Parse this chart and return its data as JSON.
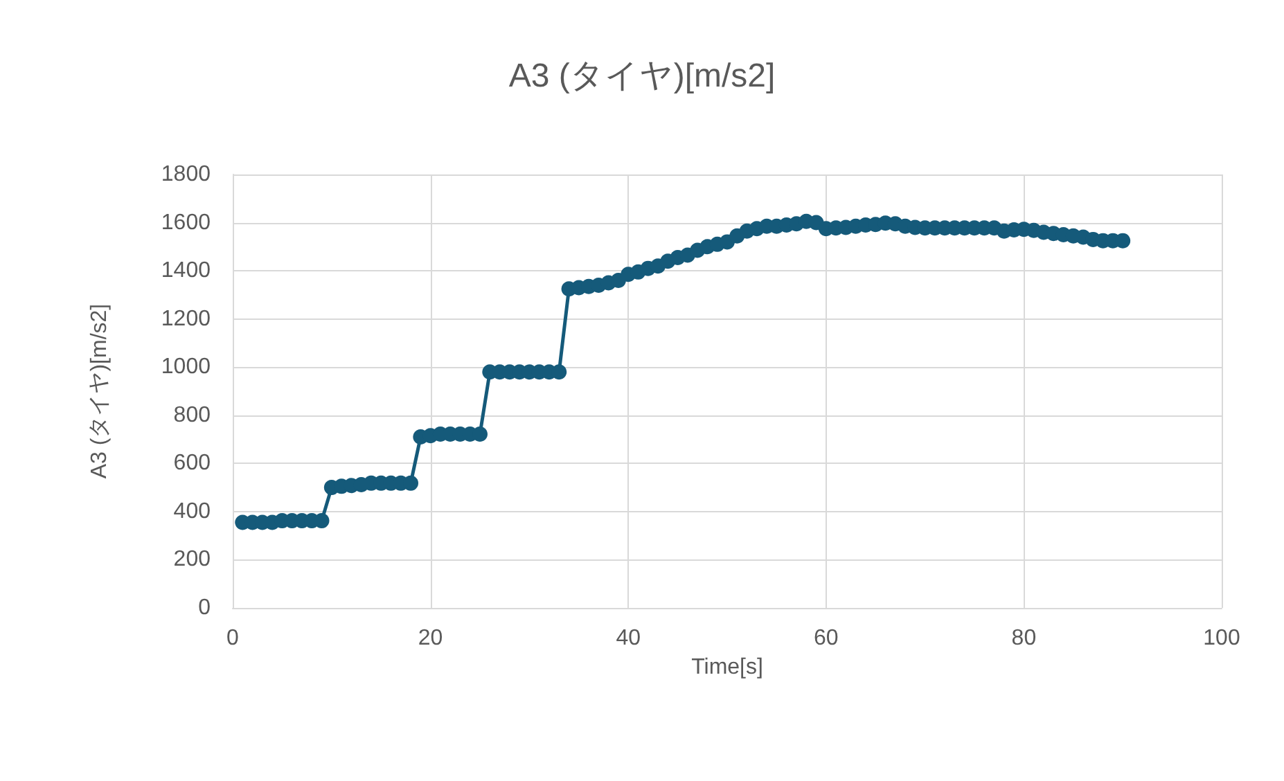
{
  "chart_data": {
    "type": "line",
    "title": "A3 (タイヤ)[m/s2]",
    "xlabel": "Time[s]",
    "ylabel": "A3 (タイヤ)[m/s2]",
    "x": [
      1,
      2,
      3,
      4,
      5,
      6,
      7,
      8,
      9,
      10,
      11,
      12,
      13,
      14,
      15,
      16,
      17,
      18,
      19,
      20,
      21,
      22,
      23,
      24,
      25,
      26,
      27,
      28,
      29,
      30,
      31,
      32,
      33,
      34,
      35,
      36,
      37,
      38,
      39,
      40,
      41,
      42,
      43,
      44,
      45,
      46,
      47,
      48,
      49,
      50,
      51,
      52,
      53,
      54,
      55,
      56,
      57,
      58,
      59,
      60,
      61,
      62,
      63,
      64,
      65,
      66,
      67,
      68,
      69,
      70,
      71,
      72,
      73,
      74,
      75,
      76,
      77,
      78,
      79,
      80,
      81,
      82,
      83,
      84,
      85,
      86,
      87,
      88,
      89,
      90
    ],
    "series": [
      {
        "color": "#155a7a",
        "values": [
          355,
          355,
          355,
          355,
          362,
          362,
          362,
          362,
          362,
          500,
          505,
          508,
          512,
          518,
          518,
          518,
          518,
          518,
          710,
          715,
          722,
          722,
          722,
          722,
          722,
          980,
          980,
          980,
          980,
          980,
          980,
          980,
          980,
          1325,
          1330,
          1335,
          1340,
          1350,
          1360,
          1385,
          1395,
          1410,
          1420,
          1440,
          1455,
          1465,
          1485,
          1500,
          1510,
          1520,
          1545,
          1565,
          1575,
          1585,
          1585,
          1590,
          1595,
          1605,
          1600,
          1575,
          1578,
          1580,
          1585,
          1590,
          1592,
          1598,
          1595,
          1585,
          1580,
          1578,
          1578,
          1578,
          1578,
          1578,
          1578,
          1578,
          1578,
          1565,
          1570,
          1572,
          1568,
          1560,
          1555,
          1550,
          1545,
          1540,
          1530,
          1525,
          1525,
          1525
        ]
      }
    ],
    "xlim": [
      0,
      100
    ],
    "xticks": [
      0,
      20,
      40,
      60,
      80,
      100
    ],
    "ylim": [
      0,
      1800
    ],
    "yticks": [
      0,
      200,
      400,
      600,
      800,
      1000,
      1200,
      1400,
      1600,
      1800
    ],
    "grid": true,
    "marker": "circle"
  }
}
